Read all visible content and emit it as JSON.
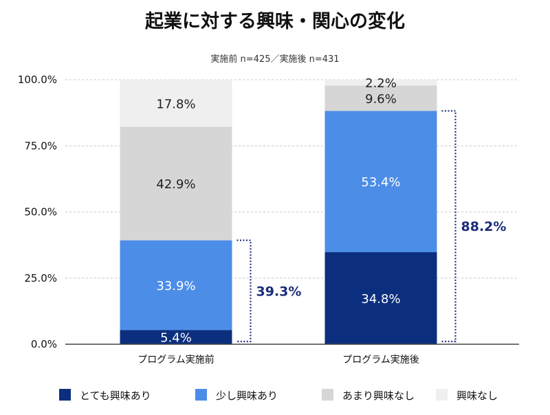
{
  "chart_data": {
    "type": "bar",
    "stacked": true,
    "title": "起業に対する興味・関心の変化",
    "subtitle": "実施前 n=425／実施後 n=431",
    "ylim": [
      0,
      100
    ],
    "yticks": [
      "0.0%",
      "25.0%",
      "50.0%",
      "75.0%",
      "100.0%"
    ],
    "grid": true,
    "legend_position": "bottom",
    "categories": [
      "プログラム実施前",
      "プログラム実施後"
    ],
    "series": [
      {
        "name": "とても興味あり",
        "color": "#0b2f7e",
        "text_color": "#ffffff",
        "values": [
          5.4,
          34.8
        ],
        "labels": [
          "5.4%",
          "34.8%"
        ]
      },
      {
        "name": "少し興味あり",
        "color": "#4c8de8",
        "text_color": "#ffffff",
        "values": [
          33.9,
          53.4
        ],
        "labels": [
          "33.9%",
          "53.4%"
        ]
      },
      {
        "name": "あまり興味なし",
        "color": "#d6d6d6",
        "text_color": "#222222",
        "values": [
          42.9,
          9.6
        ],
        "labels": [
          "42.9%",
          "9.6%"
        ]
      },
      {
        "name": "興味なし",
        "color": "#efefef",
        "text_color": "#222222",
        "values": [
          17.8,
          2.2
        ],
        "labels": [
          "17.8%",
          "2.2%"
        ]
      }
    ],
    "annotations": [
      {
        "category_index": 0,
        "from": 0,
        "to": 39.3,
        "label": "39.3%",
        "color": "#1a2d78"
      },
      {
        "category_index": 1,
        "from": 0,
        "to": 88.2,
        "label": "88.2%",
        "color": "#1a2d78"
      }
    ]
  }
}
